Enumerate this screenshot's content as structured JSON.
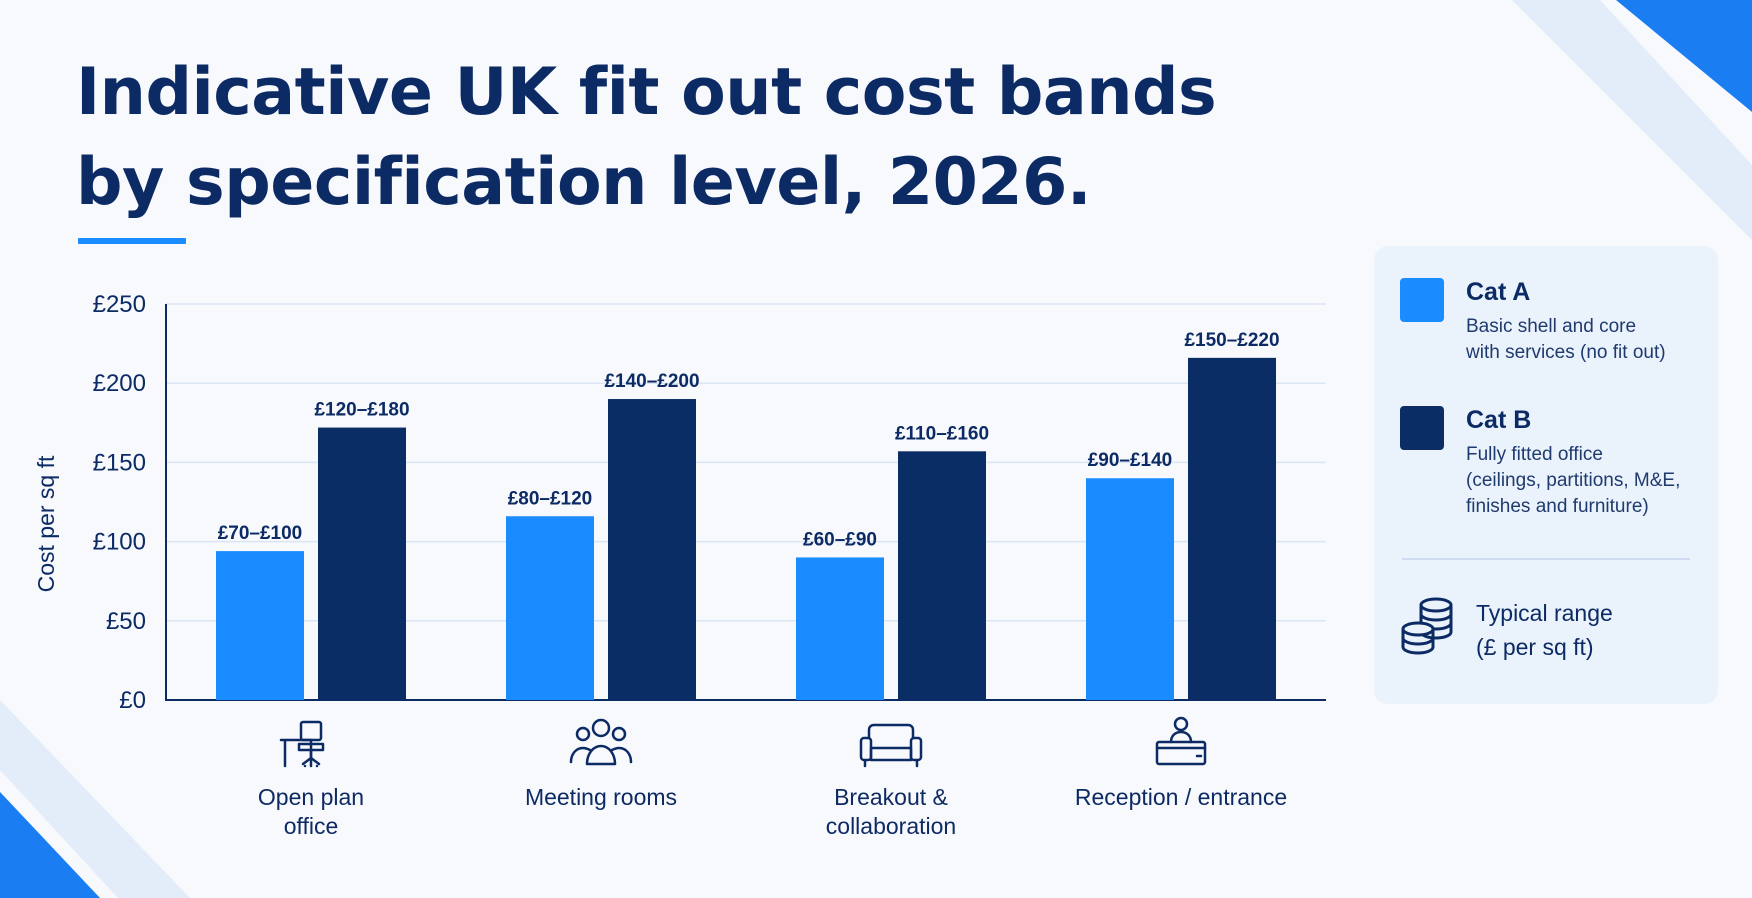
{
  "title_lines": [
    "Indicative UK fit out cost bands",
    "by specification level, 2026."
  ],
  "colors": {
    "cat_a": "#1a8cff",
    "cat_b": "#0b2d66",
    "text": "#0c2a64",
    "grid": "#dbe6f5"
  },
  "chart_data": {
    "type": "bar",
    "title": "Indicative UK fit out cost bands by specification level, 2026.",
    "ylabel": "Cost per sq ft",
    "xlabel": "",
    "ylim": [
      0,
      250
    ],
    "yticks": [
      0,
      50,
      100,
      150,
      200,
      250
    ],
    "ytick_labels": [
      "£0",
      "£50",
      "£100",
      "£150",
      "£200",
      "£250"
    ],
    "grid": true,
    "legend_position": "right",
    "categories": [
      "Open plan office",
      "Meeting rooms",
      "Breakout & collaboration",
      "Reception / entrance"
    ],
    "category_label_lines": [
      [
        "Open plan",
        "office"
      ],
      [
        "Meeting rooms"
      ],
      [
        "Breakout &",
        "collaboration"
      ],
      [
        "Reception / entrance"
      ]
    ],
    "category_icons": [
      "desk-chair-icon",
      "people-group-icon",
      "sofa-icon",
      "reception-desk-icon"
    ],
    "series": [
      {
        "name": "Cat A",
        "values": [
          94,
          116,
          90,
          140
        ],
        "labels": [
          "£70–£100",
          "£80–£120",
          "£60–£90",
          "£90–£140"
        ]
      },
      {
        "name": "Cat B",
        "values": [
          172,
          190,
          157,
          216
        ],
        "labels": [
          "£120–£180",
          "£140–£200",
          "£110–£160",
          "£150–£220"
        ]
      }
    ]
  },
  "legend": {
    "items": [
      {
        "title": "Cat A",
        "desc_lines": [
          "Basic shell and core",
          "with services (no fit out)"
        ]
      },
      {
        "title": "Cat B",
        "desc_lines": [
          "Fully fitted office",
          "(ceilings, partitions, M&E,",
          "finishes and furniture)"
        ]
      }
    ],
    "note_lines": [
      "Typical range",
      "(£ per sq ft)"
    ],
    "note_icon": "coin-stack-icon"
  }
}
